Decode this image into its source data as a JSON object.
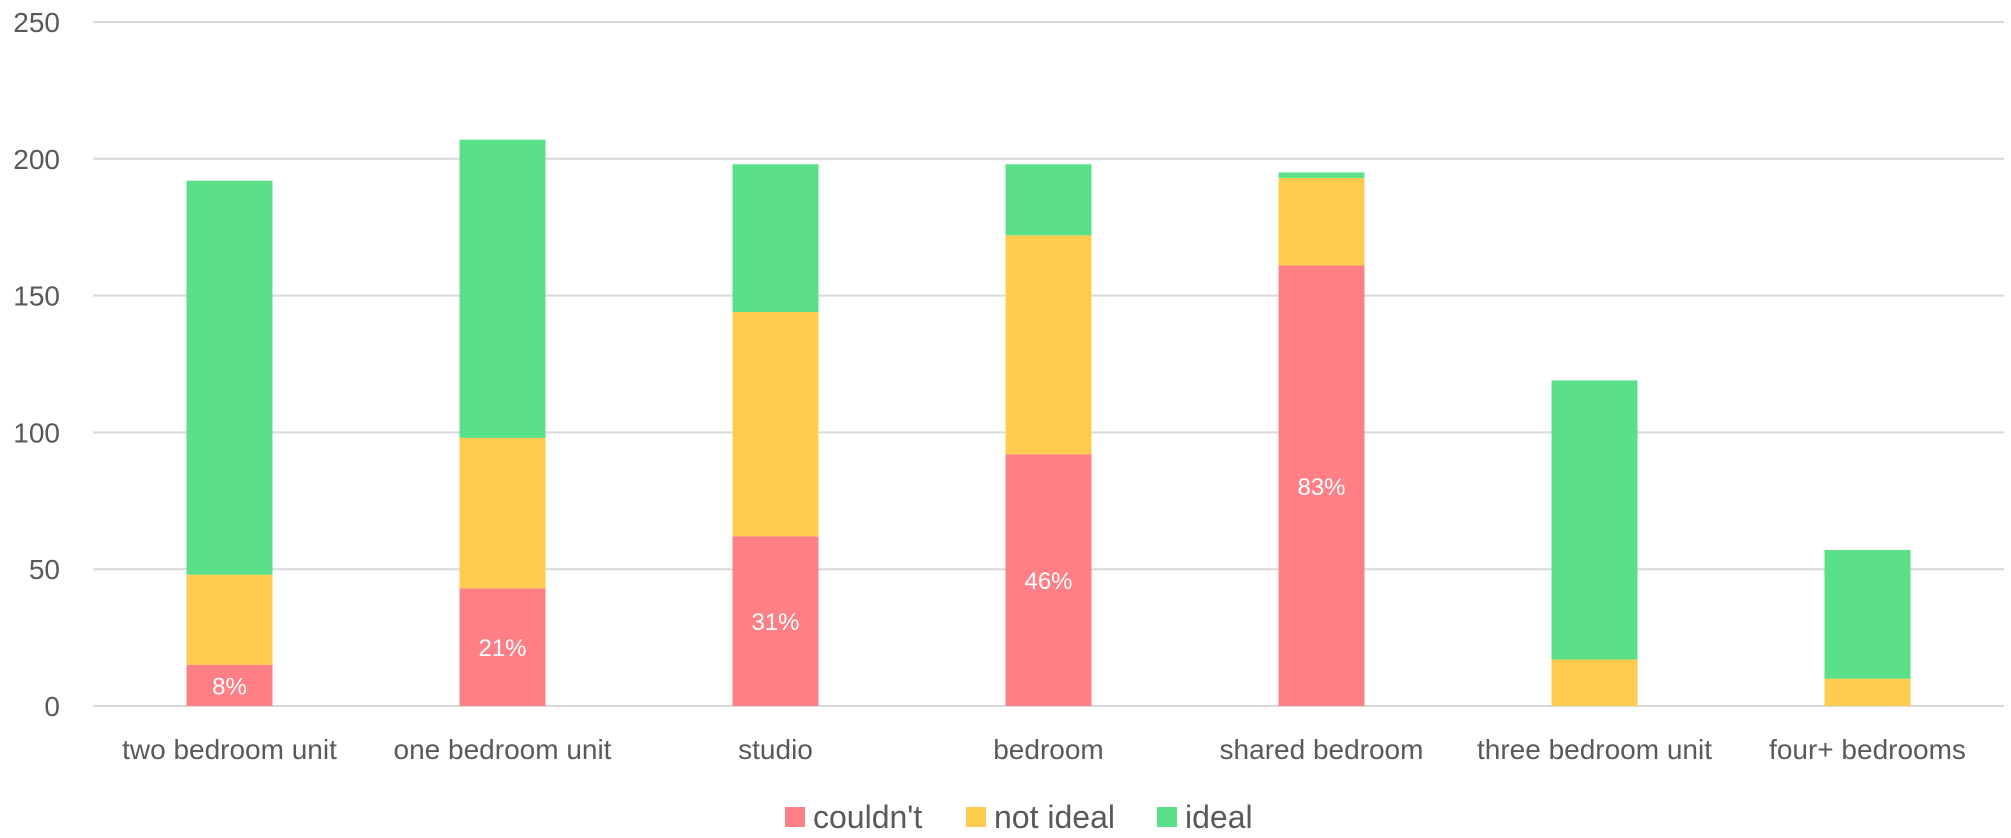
{
  "colors": {
    "couldnt": "#FF7F86",
    "not_ideal": "#FFCC4F",
    "ideal": "#59E089",
    "grid": "#D9D9D9",
    "text": "#595959"
  },
  "chart_data": {
    "type": "bar",
    "stacked": true,
    "title": "",
    "xlabel": "",
    "ylabel": "",
    "ylim": [
      0,
      250
    ],
    "yticks": [
      "0",
      "50",
      "100",
      "150",
      "200",
      "250"
    ],
    "grid": true,
    "legend_position": "bottom",
    "categories": [
      "two bedroom unit",
      "one bedroom unit",
      "studio",
      "bedroom",
      "shared bedroom",
      "three bedroom unit",
      "four+ bedrooms"
    ],
    "series": [
      {
        "name": "couldn't",
        "color_key": "couldnt",
        "values": [
          15,
          43,
          62,
          92,
          161,
          0,
          0
        ]
      },
      {
        "name": "not ideal",
        "color_key": "not_ideal",
        "values": [
          33,
          55,
          82,
          80,
          32,
          17,
          10
        ]
      },
      {
        "name": "ideal",
        "color_key": "ideal",
        "values": [
          144,
          109,
          54,
          26,
          2,
          102,
          47
        ]
      }
    ],
    "data_labels": [
      "8%",
      "21%",
      "31%",
      "46%",
      "83%",
      "",
      ""
    ]
  }
}
